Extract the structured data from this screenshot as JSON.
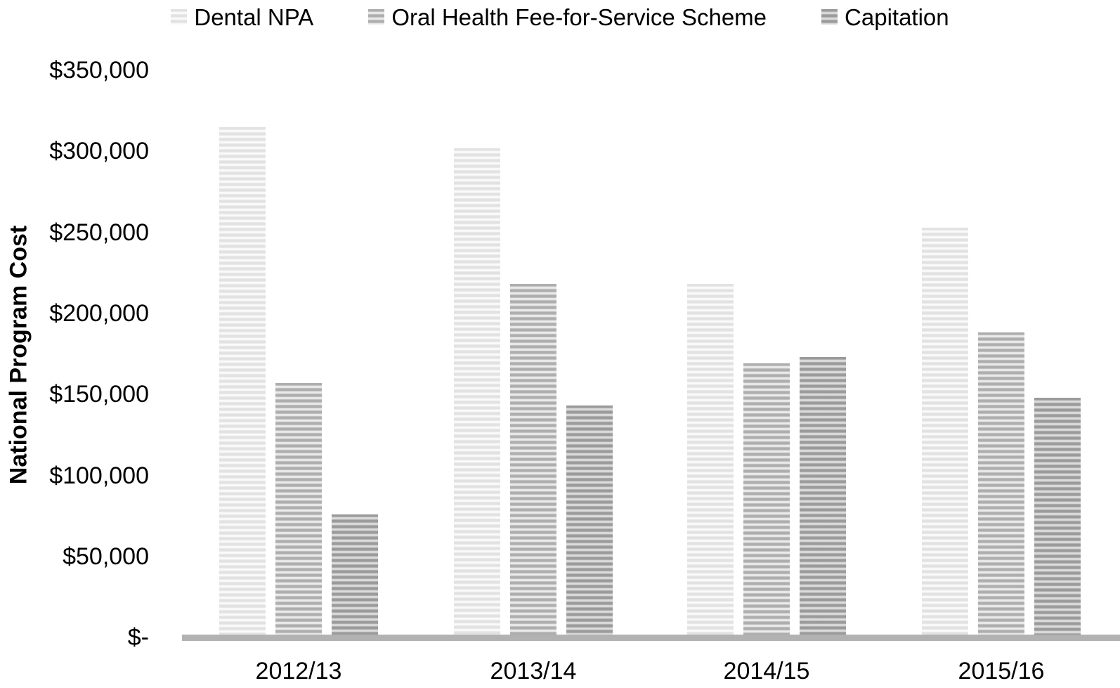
{
  "chart_data": {
    "type": "bar",
    "title": "",
    "categories": [
      "2012/13",
      "2013/14",
      "2014/15",
      "2015/16"
    ],
    "series": [
      {
        "name": "Dental NPA",
        "values": [
          315000,
          302000,
          218000,
          253000
        ],
        "stripe_dark": "#e2e2e2",
        "stripe_light": "#fafafa"
      },
      {
        "name": "Oral Health Fee-for-Service Scheme",
        "values": [
          157000,
          218000,
          169000,
          188000
        ],
        "stripe_dark": "#aeaeae",
        "stripe_light": "#ebebeb"
      },
      {
        "name": "Capitation",
        "values": [
          76000,
          143000,
          173000,
          148000
        ],
        "stripe_dark": "#9b9b9b",
        "stripe_light": "#dcdcdc"
      }
    ],
    "xlabel": "",
    "ylabel": "National Program Cost",
    "ylim": [
      0,
      350000
    ],
    "ytick_step": 50000,
    "ytick_labels": [
      "$350,000",
      "$300,000",
      "$250,000",
      "$200,000",
      "$150,000",
      "$100,000",
      "$50,000",
      "$-"
    ],
    "grid": "off",
    "legend_position": "top",
    "axis_line_color": "#b2b2b2",
    "text_color": "#000000",
    "background_color": "#ffffff"
  }
}
